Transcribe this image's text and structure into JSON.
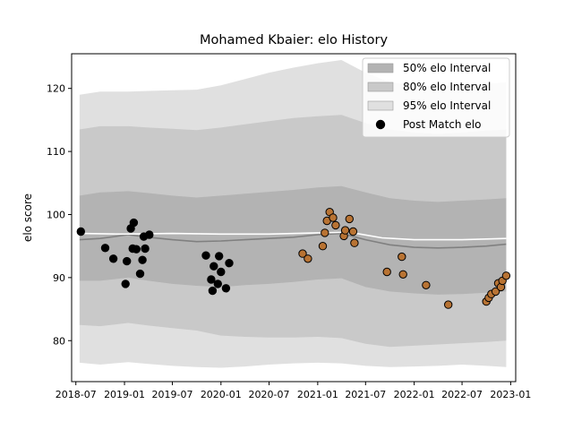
{
  "chart_data": {
    "type": "scatter",
    "title": "Mohamed Kbaier: elo History",
    "xlabel": "",
    "ylabel": "elo score",
    "xlim": [
      "2018-06-15",
      "2023-01-20"
    ],
    "ylim": [
      73.5,
      125.5
    ],
    "grid": false,
    "legend_position": "top-right",
    "x_ticks": [
      {
        "date": "2018-07-01",
        "label": "2018-07"
      },
      {
        "date": "2019-01-01",
        "label": "2019-01"
      },
      {
        "date": "2019-07-01",
        "label": "2019-07"
      },
      {
        "date": "2020-01-01",
        "label": "2020-01"
      },
      {
        "date": "2020-07-01",
        "label": "2020-07"
      },
      {
        "date": "2021-01-01",
        "label": "2021-01"
      },
      {
        "date": "2021-07-01",
        "label": "2021-07"
      },
      {
        "date": "2022-01-01",
        "label": "2022-01"
      },
      {
        "date": "2022-07-01",
        "label": "2022-07"
      },
      {
        "date": "2023-01-01",
        "label": "2023-01"
      }
    ],
    "y_ticks": [
      80,
      90,
      100,
      110,
      120
    ],
    "legend": [
      {
        "label": "50% elo Interval",
        "color": "#b3b3b3",
        "kind": "patch"
      },
      {
        "label": "80% elo Interval",
        "color": "#c9c9c9",
        "kind": "patch"
      },
      {
        "label": "95% elo Interval",
        "color": "#e0e0e0",
        "kind": "patch"
      },
      {
        "label": "Post Match elo",
        "color": "#000000",
        "kind": "marker"
      }
    ],
    "colors": {
      "band_95": "#e0e0e0",
      "band_80": "#c9c9c9",
      "band_50": "#b3b3b3",
      "median_line": "#808080",
      "mean_line": "#ffffff",
      "points_early": "#000000",
      "points_late": "#b87333",
      "marker_edge": "#000000"
    },
    "bands": {
      "dates": [
        "2018-07-15",
        "2018-10-01",
        "2019-01-15",
        "2019-04-01",
        "2019-07-01",
        "2019-10-01",
        "2020-01-01",
        "2020-04-01",
        "2020-07-01",
        "2020-10-01",
        "2021-01-01",
        "2021-04-01",
        "2021-07-01",
        "2021-10-01",
        "2022-01-01",
        "2022-04-01",
        "2022-07-01",
        "2022-10-01",
        "2022-12-15"
      ],
      "p95_upper": [
        119.0,
        119.5,
        119.5,
        119.6,
        119.7,
        119.8,
        120.5,
        121.5,
        122.5,
        123.3,
        124.0,
        124.5,
        122.5,
        121.0,
        120.5,
        120.4,
        120.5,
        120.7,
        121.0
      ],
      "p80_upper": [
        113.5,
        114.0,
        114.0,
        113.8,
        113.6,
        113.4,
        113.8,
        114.3,
        114.8,
        115.3,
        115.6,
        115.8,
        114.5,
        113.5,
        113.0,
        112.8,
        113.0,
        113.3,
        113.5
      ],
      "p50_upper": [
        103.0,
        103.5,
        103.7,
        103.4,
        103.0,
        102.7,
        103.0,
        103.3,
        103.6,
        103.9,
        104.3,
        104.5,
        103.5,
        102.6,
        102.2,
        102.0,
        102.2,
        102.4,
        102.6
      ],
      "median": [
        96.0,
        96.2,
        96.8,
        96.4,
        96.0,
        95.7,
        95.8,
        96.0,
        96.2,
        96.4,
        96.8,
        97.0,
        96.0,
        95.2,
        94.8,
        94.7,
        94.8,
        95.0,
        95.3
      ],
      "p50_lower": [
        89.5,
        89.5,
        90.0,
        89.5,
        89.0,
        88.7,
        88.5,
        88.8,
        89.0,
        89.3,
        89.7,
        89.9,
        88.5,
        87.8,
        87.5,
        87.3,
        87.4,
        87.6,
        87.8
      ],
      "p80_lower": [
        82.5,
        82.3,
        82.8,
        82.4,
        82.0,
        81.6,
        80.8,
        80.6,
        80.5,
        80.5,
        80.6,
        80.4,
        79.5,
        79.0,
        79.2,
        79.4,
        79.6,
        79.8,
        80.0
      ],
      "p95_lower": [
        76.5,
        76.2,
        76.6,
        76.3,
        76.0,
        75.8,
        75.7,
        75.9,
        76.2,
        76.4,
        76.5,
        76.4,
        76.0,
        75.8,
        75.9,
        76.0,
        76.2,
        76.0,
        75.8
      ]
    },
    "mean_line": {
      "dates": [
        "2018-07-15",
        "2019-01-01",
        "2019-07-01",
        "2020-01-01",
        "2020-07-01",
        "2021-01-01",
        "2021-05-01",
        "2021-09-01",
        "2022-01-01",
        "2022-07-01",
        "2022-12-15"
      ],
      "values": [
        97.0,
        96.9,
        97.0,
        96.9,
        96.9,
        97.1,
        97.2,
        96.3,
        96.0,
        96.0,
        96.2
      ]
    },
    "series": [
      {
        "name": "Post Match elo",
        "color": "#000000",
        "points": [
          {
            "x": "2018-07-20",
            "y": 97.3
          },
          {
            "x": "2018-10-20",
            "y": 94.7
          },
          {
            "x": "2018-11-20",
            "y": 93.0
          },
          {
            "x": "2019-01-05",
            "y": 89.0
          },
          {
            "x": "2019-01-10",
            "y": 92.6
          },
          {
            "x": "2019-01-25",
            "y": 97.8
          },
          {
            "x": "2019-02-01",
            "y": 94.6
          },
          {
            "x": "2019-02-05",
            "y": 98.7
          },
          {
            "x": "2019-02-15",
            "y": 94.5
          },
          {
            "x": "2019-03-01",
            "y": 90.6
          },
          {
            "x": "2019-03-10",
            "y": 92.8
          },
          {
            "x": "2019-03-15",
            "y": 96.5
          },
          {
            "x": "2019-03-20",
            "y": 94.6
          },
          {
            "x": "2019-04-05",
            "y": 96.8
          },
          {
            "x": "2019-11-05",
            "y": 93.5
          },
          {
            "x": "2019-11-25",
            "y": 89.7
          },
          {
            "x": "2019-11-30",
            "y": 87.9
          },
          {
            "x": "2019-12-05",
            "y": 91.8
          },
          {
            "x": "2019-12-20",
            "y": 89.0
          },
          {
            "x": "2019-12-25",
            "y": 93.4
          },
          {
            "x": "2020-01-01",
            "y": 90.9
          },
          {
            "x": "2020-01-20",
            "y": 88.3
          },
          {
            "x": "2020-02-01",
            "y": 92.3
          }
        ]
      },
      {
        "name": "Post Match elo",
        "color": "#b87333",
        "points": [
          {
            "x": "2020-11-05",
            "y": 93.8
          },
          {
            "x": "2020-11-25",
            "y": 93.0
          },
          {
            "x": "2021-01-20",
            "y": 95.0
          },
          {
            "x": "2021-01-28",
            "y": 97.1
          },
          {
            "x": "2021-02-05",
            "y": 99.0
          },
          {
            "x": "2021-02-15",
            "y": 100.4
          },
          {
            "x": "2021-02-28",
            "y": 99.5
          },
          {
            "x": "2021-03-10",
            "y": 98.3
          },
          {
            "x": "2021-04-10",
            "y": 96.6
          },
          {
            "x": "2021-04-15",
            "y": 97.5
          },
          {
            "x": "2021-05-01",
            "y": 99.3
          },
          {
            "x": "2021-05-15",
            "y": 97.3
          },
          {
            "x": "2021-05-20",
            "y": 95.5
          },
          {
            "x": "2021-09-20",
            "y": 90.9
          },
          {
            "x": "2021-11-15",
            "y": 93.3
          },
          {
            "x": "2021-11-20",
            "y": 90.5
          },
          {
            "x": "2022-02-15",
            "y": 88.8
          },
          {
            "x": "2022-05-10",
            "y": 85.7
          },
          {
            "x": "2022-10-01",
            "y": 86.2
          },
          {
            "x": "2022-10-10",
            "y": 86.8
          },
          {
            "x": "2022-10-20",
            "y": 87.4
          },
          {
            "x": "2022-11-05",
            "y": 87.8
          },
          {
            "x": "2022-11-15",
            "y": 89.1
          },
          {
            "x": "2022-11-25",
            "y": 88.5
          },
          {
            "x": "2022-12-01",
            "y": 89.5
          },
          {
            "x": "2022-12-15",
            "y": 90.3
          }
        ]
      }
    ]
  }
}
